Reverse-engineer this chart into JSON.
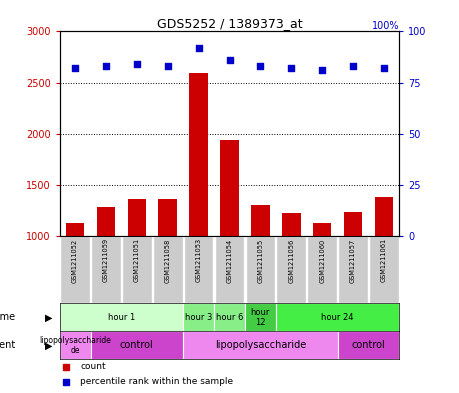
{
  "title": "GDS5252 / 1389373_at",
  "samples": [
    "GSM1211052",
    "GSM1211059",
    "GSM1211051",
    "GSM1211058",
    "GSM1211053",
    "GSM1211054",
    "GSM1211055",
    "GSM1211056",
    "GSM1211060",
    "GSM1211057",
    "GSM1211061"
  ],
  "counts": [
    1130,
    1290,
    1360,
    1360,
    2590,
    1940,
    1310,
    1230,
    1130,
    1240,
    1380
  ],
  "percentiles": [
    82,
    83,
    84,
    83,
    92,
    86,
    83,
    82,
    81,
    83,
    82
  ],
  "ylim_left": [
    1000,
    3000
  ],
  "ylim_right": [
    0,
    100
  ],
  "yticks_left": [
    1000,
    1500,
    2000,
    2500,
    3000
  ],
  "yticks_right": [
    0,
    25,
    50,
    75,
    100
  ],
  "bar_color": "#cc0000",
  "dot_color": "#0000cc",
  "bg_color": "#ffffff",
  "grid_color": "#000000",
  "time_groups": [
    {
      "label": "hour 1",
      "start": 0,
      "end": 4,
      "color": "#ccffcc"
    },
    {
      "label": "hour 3",
      "start": 4,
      "end": 5,
      "color": "#88ee88"
    },
    {
      "label": "hour 6",
      "start": 5,
      "end": 6,
      "color": "#88ee88"
    },
    {
      "label": "hour\n12",
      "start": 6,
      "end": 7,
      "color": "#44cc44"
    },
    {
      "label": "hour 24",
      "start": 7,
      "end": 11,
      "color": "#44ee44"
    }
  ],
  "agent_groups": [
    {
      "label": "lipopolysaccharide\nde",
      "start": 0,
      "end": 1,
      "color": "#ee88ee"
    },
    {
      "label": "control",
      "start": 1,
      "end": 4,
      "color": "#cc44cc"
    },
    {
      "label": "lipopolysaccharide",
      "start": 4,
      "end": 9,
      "color": "#ee88ee"
    },
    {
      "label": "control",
      "start": 9,
      "end": 11,
      "color": "#cc44cc"
    }
  ],
  "legend_items": [
    {
      "label": "count",
      "color": "#cc0000"
    },
    {
      "label": "percentile rank within the sample",
      "color": "#0000cc"
    }
  ],
  "sample_box_color": "#cccccc"
}
